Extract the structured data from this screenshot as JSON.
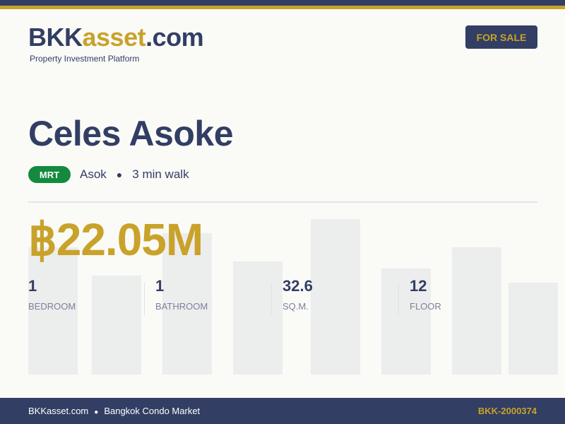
{
  "header": {
    "logo_primary": "BKK",
    "logo_accent": "asset",
    "logo_suffix": ".com",
    "tagline": "Property Investment Platform",
    "status_badge": "FOR SALE"
  },
  "listing": {
    "name": "Celes Asoke",
    "transit_type": "MRT",
    "station": "Asok",
    "walk": "3 min walk",
    "price": "฿22.05M"
  },
  "stats": [
    {
      "value": "1",
      "label": "BEDROOM"
    },
    {
      "value": "1",
      "label": "BATHROOM"
    },
    {
      "value": "32.6",
      "label": "SQ.M."
    },
    {
      "value": "12",
      "label": "FLOOR"
    }
  ],
  "footer": {
    "site": "BKKasset.com",
    "market": "Bangkok Condo Market",
    "listing_id": "BKK-2000374"
  },
  "colors": {
    "navy": "#323e63",
    "gold": "#c9a22a",
    "mrt_green": "#138a3e"
  }
}
